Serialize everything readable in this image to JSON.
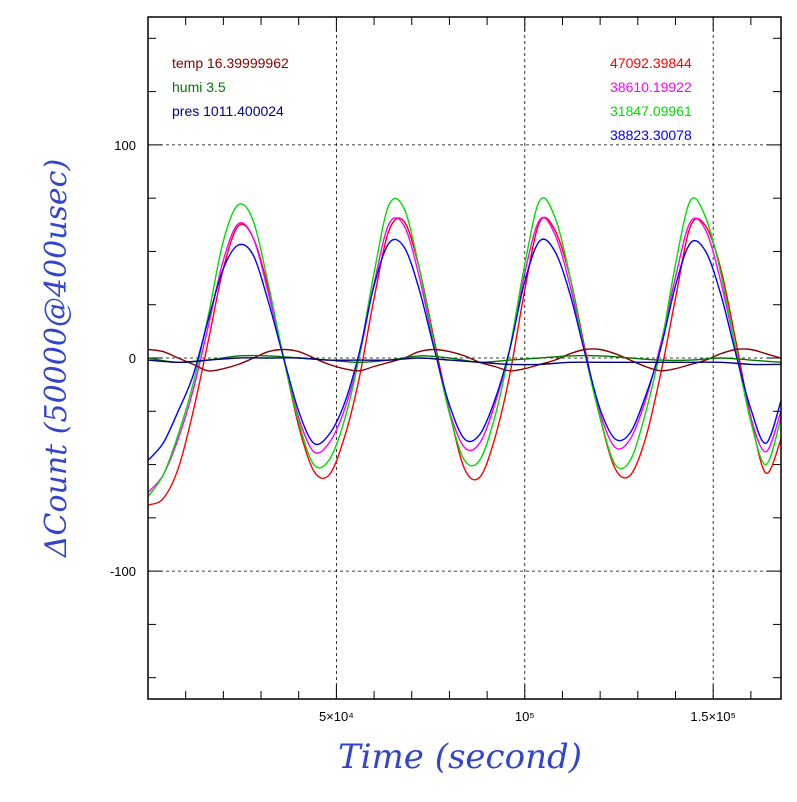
{
  "chart_data": {
    "type": "line",
    "xlabel": "Time (second)",
    "ylabel": "ΔCount (50000@400usec)",
    "xlim": [
      0,
      168000
    ],
    "ylim": [
      -160,
      160
    ],
    "grid": true,
    "x_ticks": [
      {
        "value": 50000,
        "label": "5×10⁴"
      },
      {
        "value": 100000,
        "label": "10⁵"
      },
      {
        "value": 150000,
        "label": "1.5×10⁵"
      }
    ],
    "y_ticks": [
      {
        "value": 100,
        "label": "100"
      },
      {
        "value": 0,
        "label": "0"
      },
      {
        "value": -100,
        "label": "-100"
      }
    ],
    "annotations_left": [
      {
        "text": "temp 16.39999962",
        "color": "#8b0000"
      },
      {
        "text": "humi 3.5",
        "color": "#007700"
      },
      {
        "text": "pres 1011.400024",
        "color": "#000080"
      }
    ],
    "annotations_right": [
      {
        "text": "47092.39844",
        "color": "#ff0000"
      },
      {
        "text": "38610.19922",
        "color": "#ff00ff"
      },
      {
        "text": "31847.09961",
        "color": "#00dd00"
      },
      {
        "text": "38823.30078",
        "color": "#0000ff"
      }
    ],
    "series": [
      {
        "color": "#ff0000",
        "x": [
          0,
          4000,
          8000,
          12000,
          16000,
          20000,
          24000,
          28000,
          32000,
          36000,
          40000,
          44000,
          48000,
          52000,
          56000,
          60000,
          64000,
          68000,
          72000,
          76000,
          80000,
          84000,
          88000,
          92000,
          96000,
          100000,
          104000,
          108000,
          112000,
          116000,
          120000,
          124000,
          128000,
          132000,
          136000,
          140000,
          144000,
          148000,
          152000,
          156000,
          160000,
          164000,
          168000
        ],
        "values": [
          -69,
          -66,
          -52,
          -25,
          8,
          42,
          62,
          56,
          32,
          0,
          -32,
          -53,
          -55,
          -38,
          -10,
          28,
          60,
          64,
          42,
          8,
          -25,
          -52,
          -56,
          -38,
          -8,
          32,
          64,
          60,
          38,
          4,
          -28,
          -52,
          -55,
          -38,
          -8,
          28,
          62,
          62,
          42,
          8,
          -28,
          -54,
          -38
        ]
      },
      {
        "color": "#ff00ff",
        "x": [
          0,
          4000,
          8000,
          12000,
          16000,
          20000,
          24000,
          28000,
          32000,
          36000,
          40000,
          44000,
          48000,
          52000,
          56000,
          60000,
          64000,
          68000,
          72000,
          76000,
          80000,
          84000,
          88000,
          92000,
          96000,
          100000,
          104000,
          108000,
          112000,
          116000,
          120000,
          124000,
          128000,
          132000,
          136000,
          140000,
          144000,
          148000,
          152000,
          156000,
          160000,
          164000,
          168000
        ],
        "values": [
          -63,
          -55,
          -38,
          -15,
          15,
          46,
          63,
          56,
          30,
          0,
          -28,
          -44,
          -40,
          -25,
          0,
          35,
          63,
          62,
          38,
          5,
          -25,
          -42,
          -40,
          -22,
          4,
          40,
          65,
          58,
          34,
          2,
          -26,
          -42,
          -38,
          -20,
          6,
          38,
          64,
          60,
          36,
          4,
          -28,
          -44,
          -25
        ]
      },
      {
        "color": "#00dd00",
        "x": [
          0,
          4000,
          8000,
          12000,
          16000,
          20000,
          24000,
          28000,
          32000,
          36000,
          40000,
          44000,
          48000,
          52000,
          56000,
          60000,
          64000,
          68000,
          72000,
          76000,
          80000,
          84000,
          88000,
          92000,
          96000,
          100000,
          104000,
          108000,
          112000,
          116000,
          120000,
          124000,
          128000,
          132000,
          136000,
          140000,
          144000,
          148000,
          152000,
          156000,
          160000,
          164000,
          168000
        ],
        "values": [
          -65,
          -55,
          -36,
          -12,
          20,
          55,
          72,
          64,
          34,
          0,
          -30,
          -50,
          -48,
          -30,
          0,
          40,
          72,
          70,
          42,
          6,
          -26,
          -48,
          -48,
          -28,
          4,
          44,
          74,
          66,
          38,
          2,
          -28,
          -50,
          -48,
          -26,
          4,
          44,
          74,
          66,
          40,
          4,
          -30,
          -50,
          -28
        ]
      },
      {
        "color": "#0000ff",
        "x": [
          0,
          4000,
          8000,
          12000,
          16000,
          20000,
          24000,
          28000,
          32000,
          36000,
          40000,
          44000,
          48000,
          52000,
          56000,
          60000,
          64000,
          68000,
          72000,
          76000,
          80000,
          84000,
          88000,
          92000,
          96000,
          100000,
          104000,
          108000,
          112000,
          116000,
          120000,
          124000,
          128000,
          132000,
          136000,
          140000,
          144000,
          148000,
          152000,
          156000,
          160000,
          164000,
          168000
        ],
        "values": [
          -48,
          -40,
          -25,
          -8,
          18,
          42,
          53,
          48,
          26,
          0,
          -25,
          -40,
          -36,
          -22,
          2,
          34,
          54,
          52,
          32,
          4,
          -22,
          -38,
          -36,
          -20,
          4,
          36,
          55,
          50,
          30,
          2,
          -24,
          -38,
          -35,
          -18,
          4,
          34,
          54,
          50,
          30,
          2,
          -24,
          -40,
          -20
        ]
      },
      {
        "color": "#8b0000",
        "x": [
          0,
          4000,
          8000,
          12000,
          16000,
          20000,
          24000,
          28000,
          32000,
          36000,
          40000,
          44000,
          48000,
          52000,
          56000,
          60000,
          64000,
          68000,
          72000,
          76000,
          80000,
          84000,
          88000,
          92000,
          96000,
          100000,
          104000,
          108000,
          112000,
          116000,
          120000,
          124000,
          128000,
          132000,
          136000,
          140000,
          144000,
          148000,
          152000,
          156000,
          160000,
          164000,
          168000
        ],
        "values": [
          4,
          3,
          0,
          -3,
          -6,
          -5,
          -3,
          0,
          3,
          4,
          3,
          0,
          -3,
          -5,
          -6,
          -4,
          -2,
          0,
          3,
          4,
          3,
          1,
          -2,
          -4,
          -6,
          -5,
          -3,
          -1,
          2,
          4,
          4,
          2,
          -1,
          -4,
          -6,
          -5,
          -3,
          -1,
          2,
          4,
          4,
          2,
          0
        ]
      },
      {
        "color": "#007700",
        "x": [
          0,
          8000,
          16000,
          24000,
          32000,
          40000,
          48000,
          56000,
          64000,
          72000,
          80000,
          88000,
          96000,
          104000,
          112000,
          120000,
          128000,
          136000,
          144000,
          152000,
          160000,
          168000
        ],
        "values": [
          0,
          -2,
          -1,
          1,
          1,
          0,
          -1,
          -2,
          -1,
          1,
          0,
          -2,
          -1,
          0,
          1,
          1,
          0,
          -1,
          -1,
          0,
          -1,
          -2
        ]
      },
      {
        "color": "#000080",
        "x": [
          0,
          8000,
          16000,
          24000,
          32000,
          40000,
          48000,
          56000,
          64000,
          72000,
          80000,
          88000,
          96000,
          104000,
          112000,
          120000,
          128000,
          136000,
          144000,
          152000,
          160000,
          168000
        ],
        "values": [
          -1,
          -2,
          -1,
          0,
          0,
          0,
          -1,
          -1,
          -1,
          0,
          -1,
          -2,
          -3,
          -3,
          -2,
          -2,
          -2,
          -2,
          -2,
          -2,
          -3,
          -3
        ]
      }
    ]
  }
}
